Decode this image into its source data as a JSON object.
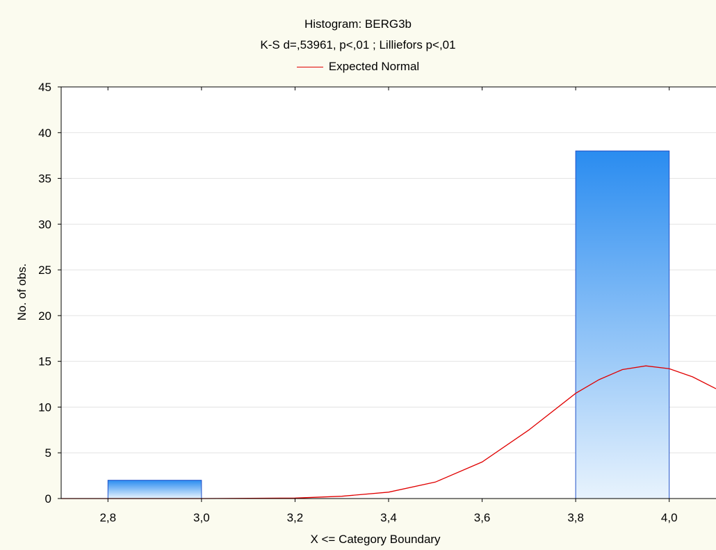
{
  "chart_data": {
    "type": "bar",
    "title": "Histogram: BERG3b",
    "subtitle": "K-S d=,53961, p<,01 ; Lilliefors p<,01",
    "xlabel": "X <= Category Boundary",
    "ylabel": "No. of obs.",
    "legend": [
      "Expected Normal"
    ],
    "legend_position": "top-center",
    "xlim": [
      2.7,
      4.1
    ],
    "ylim": [
      0,
      45
    ],
    "x_ticks": [
      "2,8",
      "3,0",
      "3,2",
      "3,4",
      "3,6",
      "3,8",
      "4,0"
    ],
    "x_tick_values": [
      2.8,
      3.0,
      3.2,
      3.4,
      3.6,
      3.8,
      4.0
    ],
    "y_ticks": [
      0,
      5,
      10,
      15,
      20,
      25,
      30,
      35,
      40,
      45
    ],
    "grid": true,
    "bins": [
      {
        "from": 2.8,
        "to": 3.0,
        "count": 2
      },
      {
        "from": 3.8,
        "to": 4.0,
        "count": 38
      }
    ],
    "series": [
      {
        "name": "Expected Normal",
        "type": "line",
        "color": "#e00000",
        "x": [
          2.7,
          3.0,
          3.2,
          3.3,
          3.4,
          3.5,
          3.6,
          3.7,
          3.8,
          3.85,
          3.9,
          3.95,
          4.0,
          4.05,
          4.1
        ],
        "y": [
          0,
          0,
          0.05,
          0.25,
          0.7,
          1.8,
          4.0,
          7.5,
          11.5,
          13.0,
          14.1,
          14.5,
          14.2,
          13.3,
          12.0
        ]
      }
    ],
    "colors": {
      "bar_top": "#2a8cf0",
      "bar_bottom": "#e8f3fd",
      "bar_border": "#2050c8",
      "curve": "#e00000"
    }
  }
}
